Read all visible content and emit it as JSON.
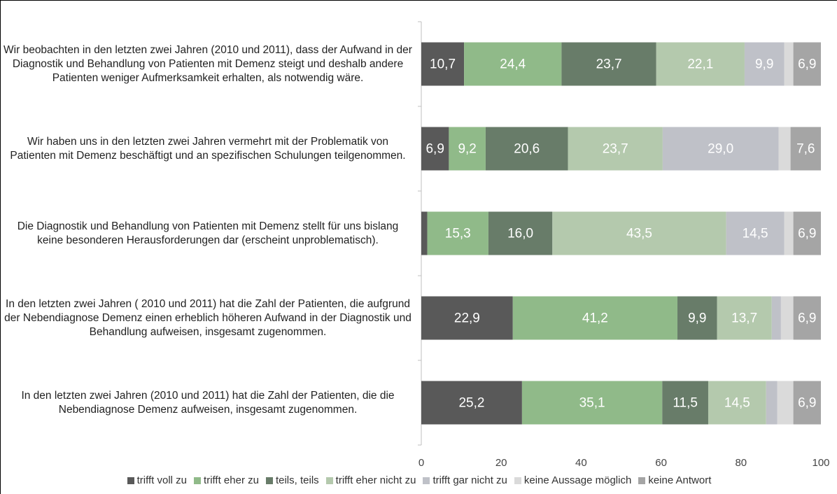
{
  "chart_data": {
    "type": "stacked-bar-horizontal",
    "categories": [
      "Wir beobachten in den letzten zwei Jahren (2010 und 2011), dass der Aufwand in der Diagnostik und Behandlung von Patienten mit Demenz steigt und deshalb andere Patienten weniger Aufmerksamkeit erhalten, als notwendig wäre.",
      "Wir haben uns in den letzten zwei Jahren vermehrt mit der Problematik von Patienten mit Demenz beschäftigt und an spezifischen Schulungen teilgenommen.",
      "Die Diagnostik und Behandlung von Patienten mit Demenz stellt für uns bislang keine besonderen Herausforderungen dar (erscheint unproblematisch).",
      "In den letzten zwei Jahren ( 2010 und 2011) hat die Zahl der Patienten, die aufgrund der Nebendiagnose Demenz  einen erheblich höheren Aufwand in der Diagnostik und Behandlung aufweisen, insgesamt zugenommen.",
      "In den letzten zwei Jahren (2010 und 2011) hat die Zahl der Patienten, die die Nebendiagnose Demenz aufweisen, insgesamt zugenommen."
    ],
    "series": [
      {
        "name": "trifft voll zu",
        "color": "#595959",
        "values": [
          10.7,
          6.9,
          1.5,
          22.9,
          25.2
        ],
        "value_labels": [
          "10,7",
          "6,9",
          null,
          "22,9",
          "25,2"
        ]
      },
      {
        "name": "trifft eher zu",
        "color": "#90ba89",
        "values": [
          24.4,
          9.2,
          15.3,
          41.2,
          35.1
        ],
        "value_labels": [
          "24,4",
          "9,2",
          "15,3",
          "41,2",
          "35,1"
        ]
      },
      {
        "name": "teils, teils",
        "color": "#687c69",
        "values": [
          23.7,
          20.6,
          16.0,
          9.9,
          11.5
        ],
        "value_labels": [
          "23,7",
          "20,6",
          "16,0",
          "9,9",
          "11,5"
        ]
      },
      {
        "name": "trifft eher nicht zu",
        "color": "#b4c9ad",
        "values": [
          22.1,
          23.7,
          43.5,
          13.7,
          14.5
        ],
        "value_labels": [
          "22,1",
          "23,7",
          "43,5",
          "13,7",
          "14,5"
        ]
      },
      {
        "name": "trifft gar nicht zu",
        "color": "#bfc1c8",
        "values": [
          9.9,
          29.0,
          14.5,
          2.3,
          2.8
        ],
        "value_labels": [
          "9,9",
          "29,0",
          "14,5",
          null,
          null
        ]
      },
      {
        "name": "keine Aussage möglich",
        "color": "#dadada",
        "values": [
          2.3,
          3.0,
          2.3,
          3.1,
          4.0
        ],
        "value_labels": [
          null,
          null,
          null,
          null,
          null
        ]
      },
      {
        "name": "keine Antwort",
        "color": "#a5a5a5",
        "values": [
          6.9,
          7.6,
          6.9,
          6.9,
          6.9
        ],
        "value_labels": [
          "6,9",
          "7,6",
          "6,9",
          "6,9",
          "6,9"
        ]
      }
    ],
    "xlim": [
      0,
      100
    ],
    "xticks": [
      0,
      20,
      40,
      60,
      80,
      100
    ]
  }
}
